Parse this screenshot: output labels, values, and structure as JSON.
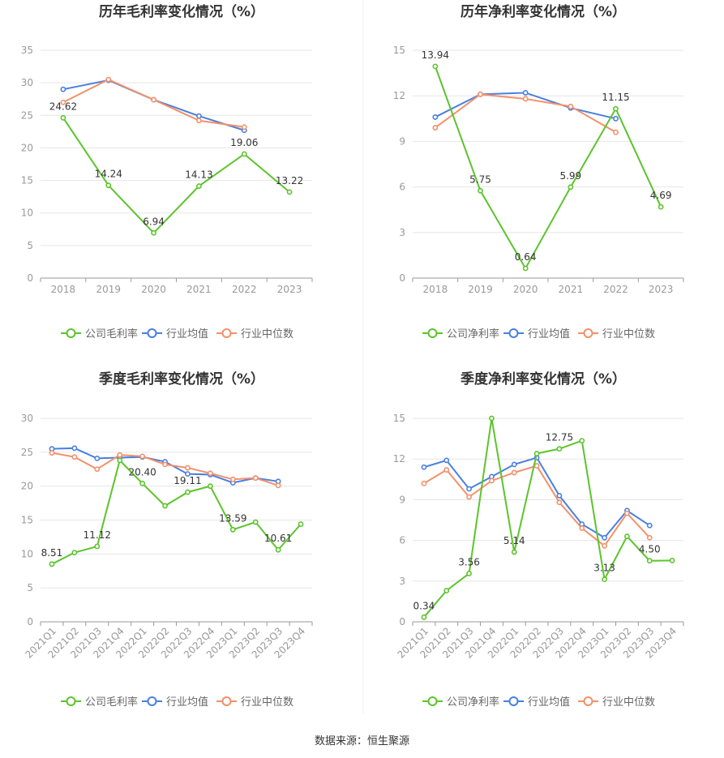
{
  "colors": {
    "company": "#5cc42c",
    "avg": "#4a7fe0",
    "median": "#f4906a",
    "grid": "#e6e6e6",
    "axis": "#999999"
  },
  "source": "数据来源：恒生聚源",
  "chart_data": [
    {
      "type": "line",
      "title": "历年毛利率变化情况（%）",
      "x": [
        "2018",
        "2019",
        "2020",
        "2021",
        "2022",
        "2023"
      ],
      "ylim": [
        0,
        35
      ],
      "yticks": [
        0,
        5,
        10,
        15,
        20,
        25,
        30,
        35
      ],
      "grid": true,
      "legend_position": "bottom",
      "series": [
        {
          "name": "公司毛利率",
          "color": "#5cc42c",
          "values": [
            24.62,
            14.24,
            6.94,
            14.13,
            19.06,
            13.22
          ],
          "labels": [
            "24.62",
            "14.24",
            "6.94",
            "14.13",
            "19.06",
            "13.22"
          ]
        },
        {
          "name": "行业均值",
          "color": "#4a7fe0",
          "values": [
            29.0,
            30.4,
            27.4,
            24.9,
            22.7,
            null
          ]
        },
        {
          "name": "行业中位数",
          "color": "#f4906a",
          "values": [
            27.0,
            30.5,
            27.4,
            24.2,
            23.2,
            null
          ]
        }
      ]
    },
    {
      "type": "line",
      "title": "历年净利率变化情况（%）",
      "x": [
        "2018",
        "2019",
        "2020",
        "2021",
        "2022",
        "2023"
      ],
      "ylim": [
        0,
        15
      ],
      "yticks": [
        0,
        3,
        6,
        9,
        12,
        15
      ],
      "grid": true,
      "legend_position": "bottom",
      "series": [
        {
          "name": "公司净利率",
          "color": "#5cc42c",
          "values": [
            13.94,
            5.75,
            0.64,
            5.99,
            11.15,
            4.69
          ],
          "labels": [
            "13.94",
            "5.75",
            "0.64",
            "5.99",
            "11.15",
            "4.69"
          ]
        },
        {
          "name": "行业均值",
          "color": "#4a7fe0",
          "values": [
            10.6,
            12.1,
            12.2,
            11.2,
            10.5,
            null
          ]
        },
        {
          "name": "行业中位数",
          "color": "#f4906a",
          "values": [
            9.9,
            12.1,
            11.8,
            11.3,
            9.6,
            null
          ]
        }
      ]
    },
    {
      "type": "line",
      "title": "季度毛利率变化情况（%）",
      "x": [
        "2021Q1",
        "2021Q2",
        "2021Q3",
        "2021Q4",
        "2022Q1",
        "2022Q2",
        "2022Q3",
        "2022Q4",
        "2023Q1",
        "2023Q2",
        "2023Q3",
        "2023Q4"
      ],
      "ylim": [
        0,
        30
      ],
      "yticks": [
        0,
        5,
        10,
        15,
        20,
        25,
        30
      ],
      "grid": true,
      "legend_position": "bottom",
      "series": [
        {
          "name": "公司毛利率",
          "color": "#5cc42c",
          "values": [
            8.51,
            10.2,
            11.12,
            23.8,
            20.4,
            17.1,
            19.11,
            20.0,
            13.59,
            14.7,
            10.61,
            14.4
          ],
          "labels": [
            "8.51",
            "",
            "11.12",
            "",
            "20.40",
            "",
            "19.11",
            "",
            "13.59",
            "",
            "10.61",
            ""
          ]
        },
        {
          "name": "行业均值",
          "color": "#4a7fe0",
          "values": [
            25.5,
            25.6,
            24.1,
            24.2,
            24.3,
            23.6,
            21.8,
            21.7,
            20.5,
            21.2,
            20.7,
            null
          ]
        },
        {
          "name": "行业中位数",
          "color": "#f4906a",
          "values": [
            24.9,
            24.3,
            22.5,
            24.6,
            24.4,
            23.2,
            22.7,
            21.9,
            21.0,
            21.2,
            20.1,
            null
          ]
        }
      ]
    },
    {
      "type": "line",
      "title": "季度净利率变化情况（%）",
      "x": [
        "2021Q1",
        "2021Q2",
        "2021Q3",
        "2021Q4",
        "2022Q1",
        "2022Q2",
        "2022Q3",
        "2022Q4",
        "2023Q1",
        "2023Q2",
        "2023Q3",
        "2023Q4"
      ],
      "ylim": [
        0,
        15
      ],
      "yticks": [
        0,
        3,
        6,
        9,
        12,
        15
      ],
      "grid": true,
      "legend_position": "bottom",
      "series": [
        {
          "name": "公司净利率",
          "color": "#5cc42c",
          "values": [
            0.34,
            2.3,
            3.56,
            15.0,
            5.14,
            12.4,
            12.75,
            13.35,
            3.13,
            6.3,
            4.5,
            4.52
          ],
          "labels": [
            "0.34",
            "",
            "3.56",
            "",
            "5.14",
            "",
            "12.75",
            "",
            "3.13",
            "",
            "4.50",
            ""
          ]
        },
        {
          "name": "行业均值",
          "color": "#4a7fe0",
          "values": [
            11.4,
            11.9,
            9.8,
            10.7,
            11.6,
            12.1,
            9.3,
            7.2,
            6.2,
            8.2,
            7.1,
            null
          ]
        },
        {
          "name": "行业中位数",
          "color": "#f4906a",
          "values": [
            10.2,
            11.2,
            9.2,
            10.4,
            11.0,
            11.5,
            8.8,
            6.9,
            5.6,
            8.0,
            6.2,
            null
          ]
        }
      ]
    }
  ]
}
